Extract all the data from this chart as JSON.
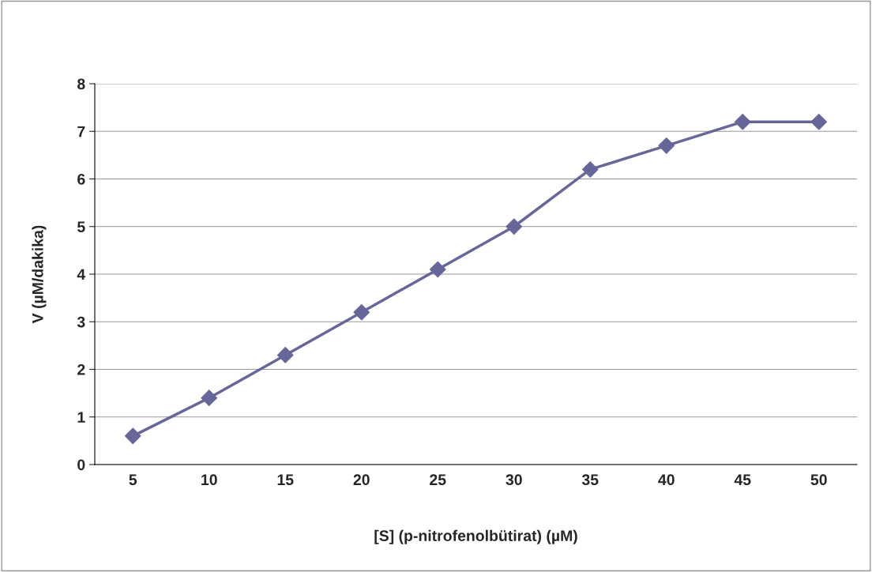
{
  "chart_data": {
    "type": "line",
    "xlabel": "[S] (p-nitrofenolbütirat) (µM)",
    "ylabel": "V (µM/dakika)",
    "categories": [
      "5",
      "10",
      "15",
      "20",
      "25",
      "30",
      "35",
      "40",
      "45",
      "50"
    ],
    "series": [
      {
        "color": "#666699",
        "values": [
          0.6,
          1.4,
          2.3,
          3.2,
          4.1,
          5.0,
          6.2,
          6.7,
          7.2,
          7.2
        ]
      }
    ],
    "ylim": [
      0,
      8
    ],
    "yticks": [
      0,
      1,
      2,
      3,
      4,
      5,
      6,
      7,
      8
    ],
    "grid": "y",
    "legend": false,
    "marker": "diamond",
    "line_style": "solid"
  }
}
